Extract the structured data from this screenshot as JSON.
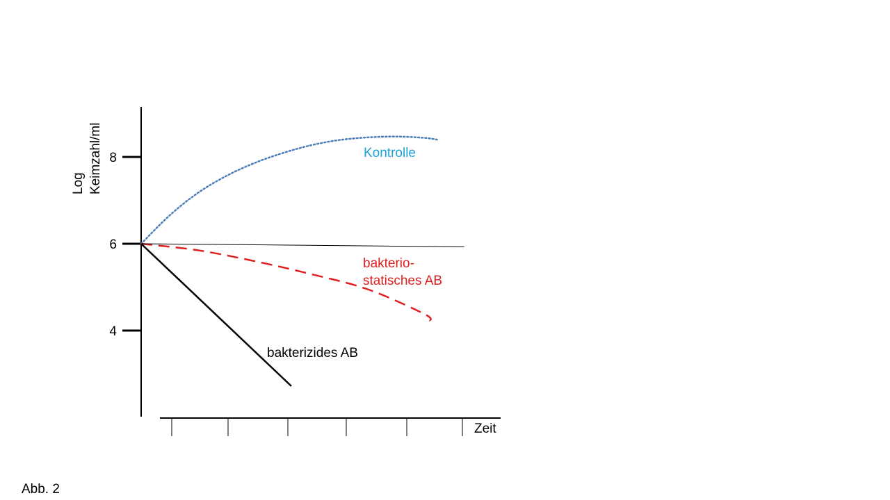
{
  "caption": "Abb. 2",
  "chart_data": {
    "type": "line",
    "ylabel_line1": "Log",
    "ylabel_line2": "Keimzahl/ml",
    "xlabel": "Zeit",
    "y_ticks": [
      4,
      6,
      8
    ],
    "ylim": [
      2,
      9.15
    ],
    "x_tick_count": 6,
    "grid": false,
    "colors": {
      "kontrolle": "#4a7ebb",
      "kontrolle_label": "#1ca3d8",
      "bakteriostatisch": "#e02020",
      "bakterizid": "#000000",
      "reference": "#000000"
    },
    "series": [
      {
        "name": "Kontrolle",
        "style": "dotted",
        "x": [
          0,
          0.5,
          1,
          1.5,
          2,
          2.5,
          3,
          3.5,
          4,
          4.5,
          5,
          5.22
        ],
        "y": [
          6.0,
          6.65,
          7.17,
          7.56,
          7.86,
          8.09,
          8.27,
          8.39,
          8.45,
          8.47,
          8.44,
          8.4
        ]
      },
      {
        "name": "bakterio-\nstatisches AB",
        "label_lines": [
          "bakterio-",
          "statisches AB"
        ],
        "style": "dashed",
        "x": [
          0,
          1,
          2,
          3,
          4,
          5,
          5.1
        ],
        "y": [
          6.0,
          5.85,
          5.6,
          5.3,
          4.95,
          4.38,
          4.22
        ]
      },
      {
        "name": "bakterizides AB",
        "style": "solid",
        "x": [
          0,
          2.65
        ],
        "y": [
          6.0,
          2.72
        ]
      },
      {
        "name": "",
        "style": "thin",
        "x": [
          0,
          5.7
        ],
        "y": [
          6.0,
          5.93
        ]
      }
    ]
  }
}
